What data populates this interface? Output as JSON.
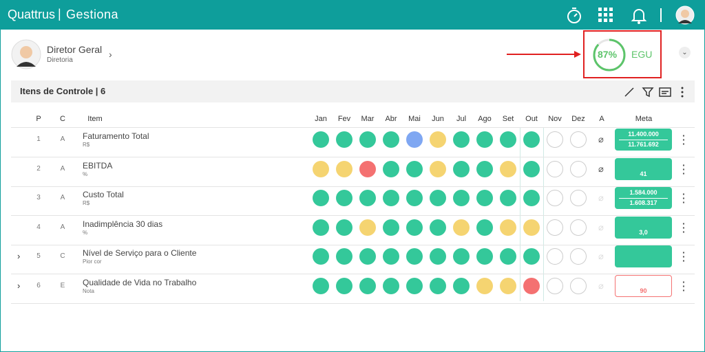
{
  "header": {
    "brand": "Quattrus",
    "product": "Gestiona"
  },
  "profile": {
    "name": "Diretor Geral",
    "role": "Diretoria"
  },
  "score": {
    "value": 87,
    "label": "87%",
    "unit": "EGU"
  },
  "panel": {
    "title": "Itens de Controle | 6"
  },
  "table": {
    "columns": [
      "P",
      "C",
      "Item",
      "Jan",
      "Fev",
      "Mar",
      "Abr",
      "Mai",
      "Jun",
      "Jul",
      "Ago",
      "Set",
      "Out",
      "Nov",
      "Dez",
      "A",
      "Meta"
    ],
    "rows": [
      {
        "p": "1",
        "c": "A",
        "item": "Faturamento Total",
        "unit": "R$",
        "months": [
          "#34c89a",
          "#34c89a",
          "#34c89a",
          "#34c89a",
          "#7fa7f2",
          "#f5d471",
          "#34c89a",
          "#34c89a",
          "#34c89a",
          "#34c89a",
          null,
          null
        ],
        "meta": [
          "11.400.000",
          "11.761.692"
        ],
        "meta_style": "ok",
        "attachment": true,
        "expandable": false
      },
      {
        "p": "2",
        "c": "A",
        "item": "EBITDA",
        "unit": "%",
        "months": [
          "#f5d471",
          "#f5d471",
          "#f47171",
          "#34c89a",
          "#34c89a",
          "#f5d471",
          "#34c89a",
          "#34c89a",
          "#f5d471",
          "#34c89a",
          null,
          null
        ],
        "meta": [
          "41"
        ],
        "meta_style": "ok",
        "attachment": true,
        "expandable": false
      },
      {
        "p": "3",
        "c": "A",
        "item": "Custo Total",
        "unit": "R$",
        "months": [
          "#34c89a",
          "#34c89a",
          "#34c89a",
          "#34c89a",
          "#34c89a",
          "#34c89a",
          "#34c89a",
          "#34c89a",
          "#34c89a",
          "#34c89a",
          null,
          null
        ],
        "meta": [
          "1.584.000",
          "1.608.317"
        ],
        "meta_style": "ok",
        "attachment": false,
        "expandable": false
      },
      {
        "p": "4",
        "c": "A",
        "item": "Inadimplência 30 dias",
        "unit": "%",
        "months": [
          "#34c89a",
          "#34c89a",
          "#f5d471",
          "#34c89a",
          "#34c89a",
          "#34c89a",
          "#f5d471",
          "#34c89a",
          "#f5d471",
          "#f5d471",
          null,
          null
        ],
        "meta": [
          "3,0"
        ],
        "meta_style": "ok",
        "attachment": false,
        "expandable": false
      },
      {
        "p": "5",
        "c": "C",
        "item": "Nível de Serviço para o Cliente",
        "unit": "Pior cor",
        "months": [
          "#34c89a",
          "#34c89a",
          "#34c89a",
          "#34c89a",
          "#34c89a",
          "#34c89a",
          "#34c89a",
          "#34c89a",
          "#34c89a",
          "#34c89a",
          null,
          null
        ],
        "meta": [],
        "meta_style": "ok",
        "attachment": false,
        "expandable": true
      },
      {
        "p": "6",
        "c": "E",
        "item": "Qualidade de Vida no Trabalho",
        "unit": "Nota",
        "months": [
          "#34c89a",
          "#34c89a",
          "#34c89a",
          "#34c89a",
          "#34c89a",
          "#34c89a",
          "#34c89a",
          "#f5d471",
          "#f5d471",
          "#f47171",
          null,
          null
        ],
        "meta": [
          "90"
        ],
        "meta_style": "alert",
        "attachment": false,
        "expandable": true
      }
    ]
  }
}
